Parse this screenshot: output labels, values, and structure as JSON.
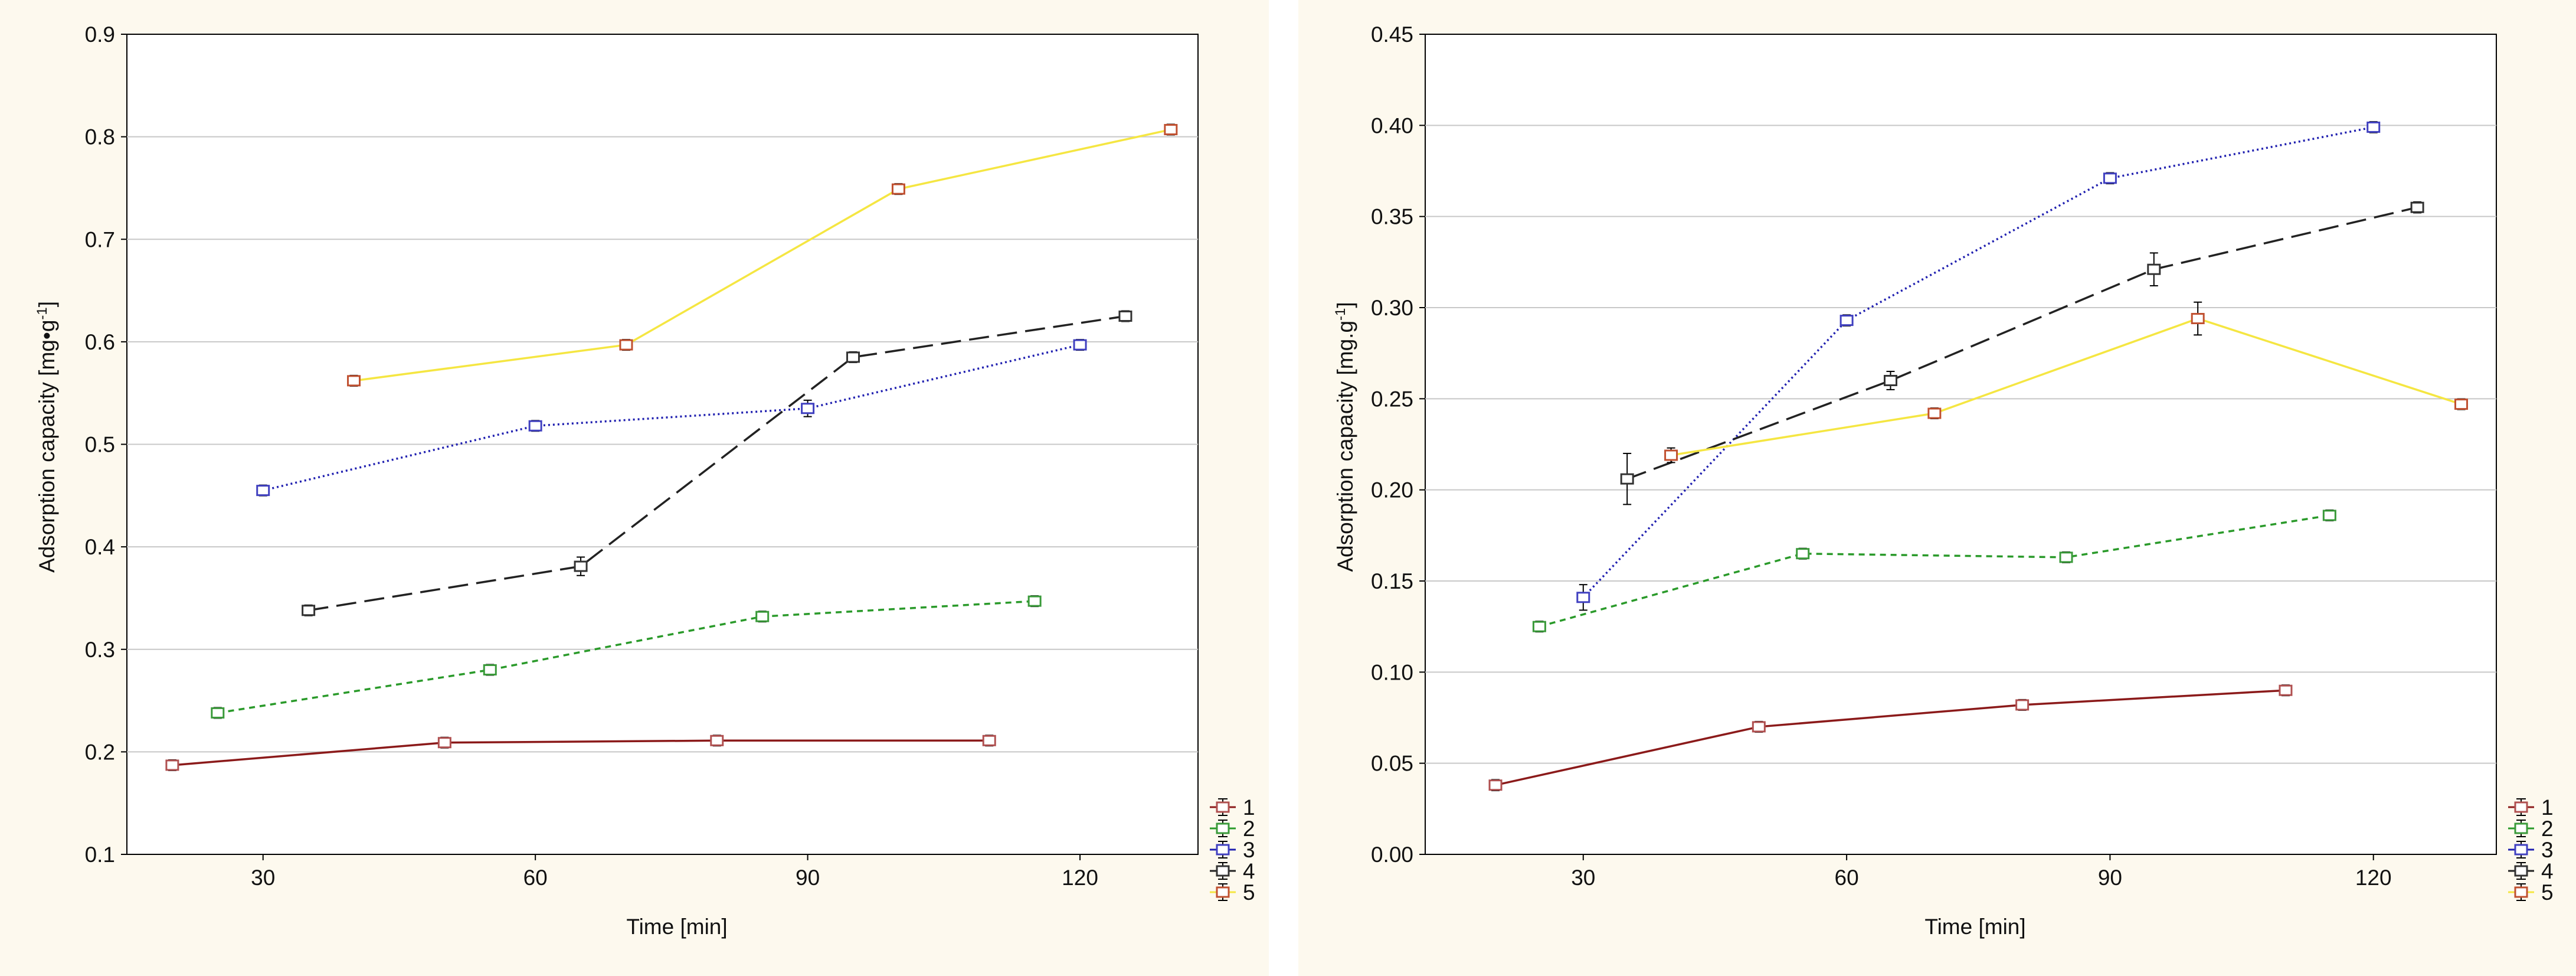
{
  "charts": [
    {
      "xlabel": "Time [min]",
      "ylabel_main": "Adsorption capacity [mg•g",
      "ylabel_sup": "-1",
      "ylabel_end": "]"
    },
    {
      "xlabel": "Time [min]",
      "ylabel_main": "Adsorption capacity [mg.g",
      "ylabel_sup": "-1",
      "ylabel_end": "]"
    }
  ],
  "chart_data": [
    {
      "type": "line",
      "xlabel": "Time [min]",
      "ylabel": "Adsorption capacity [mg•g-1]",
      "xlim": [
        15,
        133
      ],
      "ylim": [
        0.1,
        0.9
      ],
      "x_ticks": [
        30,
        60,
        90,
        120
      ],
      "x_tick_labels": [
        "30",
        "60",
        "90",
        "120"
      ],
      "y_ticks": [
        0.1,
        0.2,
        0.3,
        0.4,
        0.5,
        0.6,
        0.7,
        0.8,
        0.9
      ],
      "y_tick_labels": [
        "0.1",
        "0.2",
        "0.3",
        "0.4",
        "0.5",
        "0.6",
        "0.7",
        "0.8",
        "0.9"
      ],
      "grid": "horizontal",
      "legend_position": "bottom-right outside",
      "series": [
        {
          "name": "1",
          "color": "#8b1a1a",
          "dash": "solid",
          "marker_color": "#b05050",
          "x": [
            20,
            50,
            80,
            110
          ],
          "y": [
            0.187,
            0.209,
            0.211,
            0.211
          ],
          "err": [
            0.003,
            0.003,
            0.003,
            0.003
          ]
        },
        {
          "name": "2",
          "color": "#2a9a2a",
          "dash": "short",
          "marker_color": "#3a9a3a",
          "x": [
            25,
            55,
            85,
            115
          ],
          "y": [
            0.238,
            0.28,
            0.332,
            0.347
          ],
          "err": [
            0.003,
            0.003,
            0.003,
            0.003
          ]
        },
        {
          "name": "3",
          "color": "#2020b0",
          "dash": "dot",
          "marker_color": "#4040c0",
          "x": [
            30,
            60,
            90,
            120
          ],
          "y": [
            0.455,
            0.518,
            0.535,
            0.597
          ],
          "err": [
            0.003,
            0.003,
            0.008,
            0.003
          ]
        },
        {
          "name": "4",
          "color": "#222222",
          "dash": "long",
          "marker_color": "#333333",
          "x": [
            35,
            65,
            95,
            125
          ],
          "y": [
            0.338,
            0.381,
            0.585,
            0.625
          ],
          "err": [
            0.003,
            0.009,
            0.003,
            0.003
          ]
        },
        {
          "name": "5",
          "color": "#f5e642",
          "dash": "solid",
          "marker_color": "#c05030",
          "x": [
            40,
            70,
            100,
            130
          ],
          "y": [
            0.562,
            0.597,
            0.749,
            0.807
          ],
          "err": [
            0.003,
            0.003,
            0.004,
            0.003
          ]
        }
      ]
    },
    {
      "type": "line",
      "xlabel": "Time [min]",
      "ylabel": "Adsorption capacity [mg.g-1]",
      "xlim": [
        12,
        134
      ],
      "ylim": [
        0.0,
        0.45
      ],
      "x_ticks": [
        30,
        60,
        90,
        120
      ],
      "x_tick_labels": [
        "30",
        "60",
        "90",
        "120"
      ],
      "y_ticks": [
        0.0,
        0.05,
        0.1,
        0.15,
        0.2,
        0.25,
        0.3,
        0.35,
        0.4,
        0.45
      ],
      "y_tick_labels": [
        "0.00",
        "0.05",
        "0.10",
        "0.15",
        "0.20",
        "0.25",
        "0.30",
        "0.35",
        "0.40",
        "0.45"
      ],
      "grid": "horizontal",
      "legend_position": "bottom-right outside",
      "series": [
        {
          "name": "1",
          "color": "#8b1a1a",
          "dash": "solid",
          "marker_color": "#b05050",
          "x": [
            20,
            50,
            80,
            110
          ],
          "y": [
            0.038,
            0.07,
            0.082,
            0.09
          ],
          "err": [
            0.003,
            0.002,
            0.002,
            0.002
          ]
        },
        {
          "name": "2",
          "color": "#2a9a2a",
          "dash": "short",
          "marker_color": "#3a9a3a",
          "x": [
            25,
            55,
            85,
            115
          ],
          "y": [
            0.125,
            0.165,
            0.163,
            0.186
          ],
          "err": [
            0.002,
            0.002,
            0.002,
            0.002
          ]
        },
        {
          "name": "3",
          "color": "#2020b0",
          "dash": "dot",
          "marker_color": "#4040c0",
          "x": [
            30,
            60,
            90,
            120
          ],
          "y": [
            0.141,
            0.293,
            0.371,
            0.399
          ],
          "err": [
            0.007,
            0.003,
            0.003,
            0.003
          ]
        },
        {
          "name": "4",
          "color": "#222222",
          "dash": "long",
          "marker_color": "#333333",
          "x": [
            35,
            65,
            95,
            125
          ],
          "y": [
            0.206,
            0.26,
            0.321,
            0.355
          ],
          "err": [
            0.014,
            0.005,
            0.009,
            0.003
          ]
        },
        {
          "name": "5",
          "color": "#f5e642",
          "dash": "solid",
          "marker_color": "#c05030",
          "x": [
            40,
            70,
            100,
            130
          ],
          "y": [
            0.219,
            0.242,
            0.294,
            0.247
          ],
          "err": [
            0.004,
            0.002,
            0.009,
            0.002
          ]
        }
      ]
    }
  ]
}
